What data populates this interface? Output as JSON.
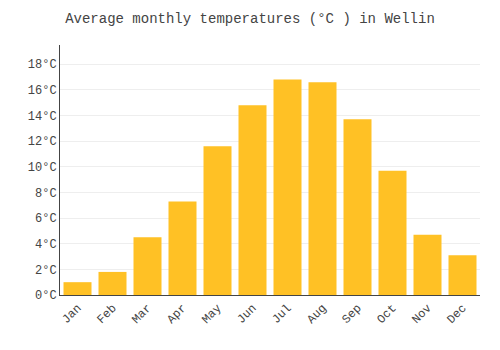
{
  "chart_data": {
    "type": "bar",
    "title": "Average monthly temperatures (°C ) in Wellin",
    "categories": [
      "Jan",
      "Feb",
      "Mar",
      "Apr",
      "May",
      "Jun",
      "Jul",
      "Aug",
      "Sep",
      "Oct",
      "Nov",
      "Dec"
    ],
    "values": [
      1.0,
      1.8,
      4.5,
      7.3,
      11.6,
      14.8,
      16.8,
      16.6,
      13.7,
      9.7,
      4.7,
      3.1
    ],
    "color": "#FFC125",
    "ylim": [
      0,
      19.5
    ],
    "yticks": [
      {
        "value": 0,
        "label": "0°C"
      },
      {
        "value": 2,
        "label": "2°C"
      },
      {
        "value": 4,
        "label": "4°C"
      },
      {
        "value": 6,
        "label": "6°C"
      },
      {
        "value": 8,
        "label": "8°C"
      },
      {
        "value": 10,
        "label": "10°C"
      },
      {
        "value": 12,
        "label": "12°C"
      },
      {
        "value": 14,
        "label": "14°C"
      },
      {
        "value": 16,
        "label": "16°C"
      },
      {
        "value": 18,
        "label": "18°C"
      }
    ],
    "grid": true
  }
}
